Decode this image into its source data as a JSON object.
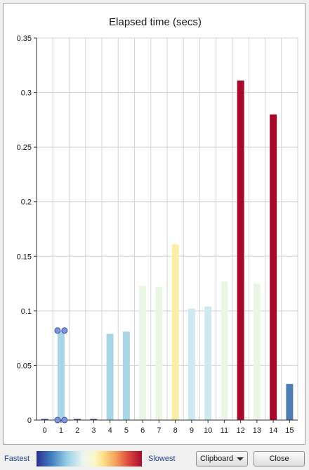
{
  "chart_data": {
    "type": "bar",
    "title": "Elapsed time (secs)",
    "xlabel": "",
    "ylabel": "",
    "categories": [
      "0",
      "1",
      "2",
      "3",
      "4",
      "5",
      "6",
      "7",
      "8",
      "9",
      "10",
      "11",
      "12",
      "13",
      "14",
      "15"
    ],
    "values": [
      0.001,
      0.082,
      0.001,
      0.001,
      0.079,
      0.081,
      0.123,
      0.122,
      0.161,
      0.102,
      0.104,
      0.127,
      0.311,
      0.125,
      0.28,
      0.033
    ],
    "bar_colors": [
      "#2d3592",
      "#a8d5e6",
      "#2d3592",
      "#2d3592",
      "#a8d5e6",
      "#a8d5e6",
      "#eaf6e4",
      "#eaf6e4",
      "#fbeea5",
      "#cfe9f1",
      "#cfe9f1",
      "#eaf6e4",
      "#a8092b",
      "#eaf6e4",
      "#a8092b",
      "#4f7fb5"
    ],
    "ylim": [
      0,
      0.35
    ],
    "yticks": [
      "0",
      "0.05",
      "0.1",
      "0.15",
      "0.2",
      "0.25",
      "0.3",
      "0.35"
    ],
    "ytick_values": [
      0,
      0.05,
      0.1,
      0.15,
      0.2,
      0.25,
      0.3,
      0.35
    ],
    "grid": true,
    "selected_bar": "1"
  },
  "legend": {
    "fastest_label": "Fastest",
    "slowest_label": "Slowest"
  },
  "controls": {
    "clipboard_label": "Clipboard",
    "close_label": "Close"
  },
  "colors": {
    "gridline": "#d4d4d4",
    "axis": "#333333",
    "selection_handle": "#7d95e0",
    "legend_text": "#1f3d8a"
  }
}
